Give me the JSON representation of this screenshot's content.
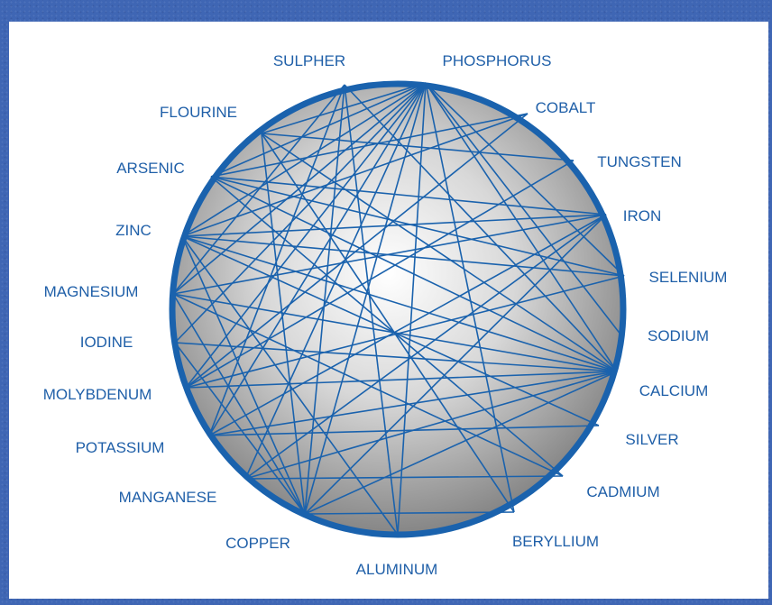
{
  "diagram": {
    "colors": {
      "line": "#1a62ad",
      "rim": "#1a62ad",
      "label": "#1f5fa8",
      "background": "#3f66b4"
    },
    "nodes": [
      {
        "id": "sulpher",
        "label": "SULPHER"
      },
      {
        "id": "phosphorus",
        "label": "PHOSPHORUS"
      },
      {
        "id": "cobalt",
        "label": "COBALT"
      },
      {
        "id": "tungsten",
        "label": "TUNGSTEN"
      },
      {
        "id": "iron",
        "label": "IRON"
      },
      {
        "id": "selenium",
        "label": "SELENIUM"
      },
      {
        "id": "sodium",
        "label": "SODIUM"
      },
      {
        "id": "calcium",
        "label": "CALCIUM"
      },
      {
        "id": "silver",
        "label": "SILVER"
      },
      {
        "id": "cadmium",
        "label": "CADMIUM"
      },
      {
        "id": "beryllium",
        "label": "BERYLLIUM"
      },
      {
        "id": "aluminum",
        "label": "ALUMINUM"
      },
      {
        "id": "copper",
        "label": "COPPER"
      },
      {
        "id": "manganese",
        "label": "MANGANESE"
      },
      {
        "id": "potassium",
        "label": "POTASSIUM"
      },
      {
        "id": "molybdenum",
        "label": "MOLYBDENUM"
      },
      {
        "id": "iodine",
        "label": "IODINE"
      },
      {
        "id": "magnesium",
        "label": "MAGNESIUM"
      },
      {
        "id": "zinc",
        "label": "ZINC"
      },
      {
        "id": "arsenic",
        "label": "ARSENIC"
      },
      {
        "id": "flourine",
        "label": "FLOURINE"
      }
    ],
    "edges": [
      [
        "phosphorus",
        "zinc"
      ],
      [
        "phosphorus",
        "magnesium"
      ],
      [
        "phosphorus",
        "iodine"
      ],
      [
        "phosphorus",
        "molybdenum"
      ],
      [
        "phosphorus",
        "potassium"
      ],
      [
        "phosphorus",
        "manganese"
      ],
      [
        "phosphorus",
        "copper"
      ],
      [
        "phosphorus",
        "aluminum"
      ],
      [
        "phosphorus",
        "beryllium"
      ],
      [
        "phosphorus",
        "calcium"
      ],
      [
        "phosphorus",
        "selenium"
      ],
      [
        "phosphorus",
        "flourine"
      ],
      [
        "phosphorus",
        "arsenic"
      ],
      [
        "phosphorus",
        "sodium"
      ],
      [
        "sulpher",
        "potassium"
      ],
      [
        "sulpher",
        "magnesium"
      ],
      [
        "sulpher",
        "calcium"
      ],
      [
        "sulpher",
        "copper"
      ],
      [
        "sulpher",
        "aluminum"
      ],
      [
        "calcium",
        "zinc"
      ],
      [
        "calcium",
        "magnesium"
      ],
      [
        "calcium",
        "iodine"
      ],
      [
        "calcium",
        "molybdenum"
      ],
      [
        "calcium",
        "potassium"
      ],
      [
        "calcium",
        "manganese"
      ],
      [
        "calcium",
        "copper"
      ],
      [
        "calcium",
        "flourine"
      ],
      [
        "calcium",
        "arsenic"
      ],
      [
        "iron",
        "zinc"
      ],
      [
        "iron",
        "magnesium"
      ],
      [
        "iron",
        "potassium"
      ],
      [
        "iron",
        "manganese"
      ],
      [
        "iron",
        "copper"
      ],
      [
        "iron",
        "arsenic"
      ],
      [
        "cobalt",
        "arsenic"
      ],
      [
        "cobalt",
        "zinc"
      ],
      [
        "cobalt",
        "molybdenum"
      ],
      [
        "tungsten",
        "flourine"
      ],
      [
        "tungsten",
        "molybdenum"
      ],
      [
        "selenium",
        "zinc"
      ],
      [
        "selenium",
        "arsenic"
      ],
      [
        "selenium",
        "molybdenum"
      ],
      [
        "zinc",
        "copper"
      ],
      [
        "zinc",
        "aluminum"
      ],
      [
        "zinc",
        "silver"
      ],
      [
        "flourine",
        "beryllium"
      ],
      [
        "flourine",
        "copper"
      ],
      [
        "magnesium",
        "copper"
      ],
      [
        "magnesium",
        "cadmium"
      ],
      [
        "iodine",
        "copper"
      ],
      [
        "manganese",
        "cadmium"
      ],
      [
        "potassium",
        "silver"
      ],
      [
        "copper",
        "beryllium"
      ],
      [
        "arsenic",
        "cadmium"
      ]
    ]
  }
}
